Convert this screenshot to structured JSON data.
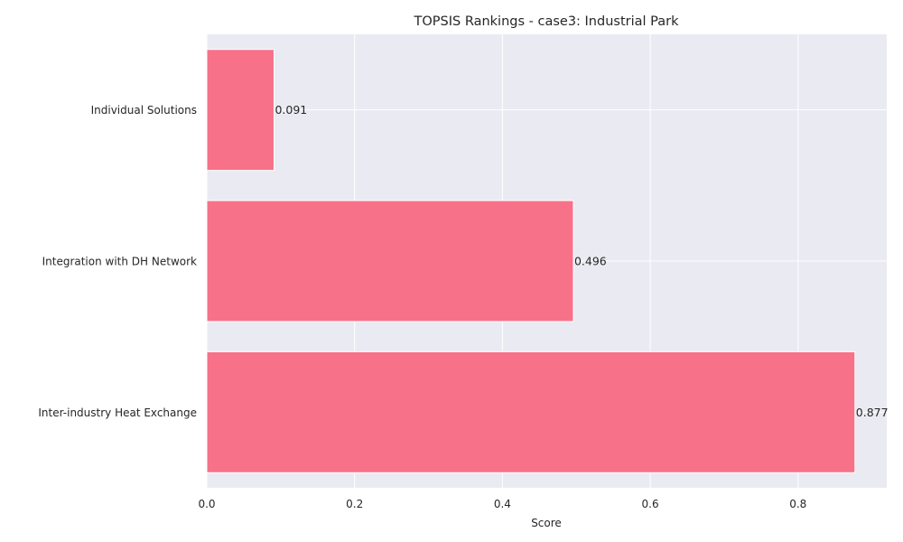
{
  "chart_data": {
    "type": "bar",
    "orientation": "horizontal",
    "title": "TOPSIS Rankings - case3: Industrial Park",
    "xlabel": "Score",
    "ylabel": "",
    "categories": [
      "Inter-industry Heat Exchange",
      "Integration with DH Network",
      "Individual Solutions"
    ],
    "values": [
      0.877,
      0.496,
      0.091
    ],
    "data_labels": [
      "0.877",
      "0.496",
      "0.091"
    ],
    "xlim": [
      0,
      0.92
    ],
    "xticks": [
      0.0,
      0.2,
      0.4,
      0.6,
      0.8
    ],
    "xtick_labels": [
      "0.0",
      "0.2",
      "0.4",
      "0.6",
      "0.8"
    ],
    "grid": true,
    "colors": {
      "bar": "#f77189",
      "plot_background": "#eaeaf2",
      "grid": "#ffffff"
    }
  }
}
